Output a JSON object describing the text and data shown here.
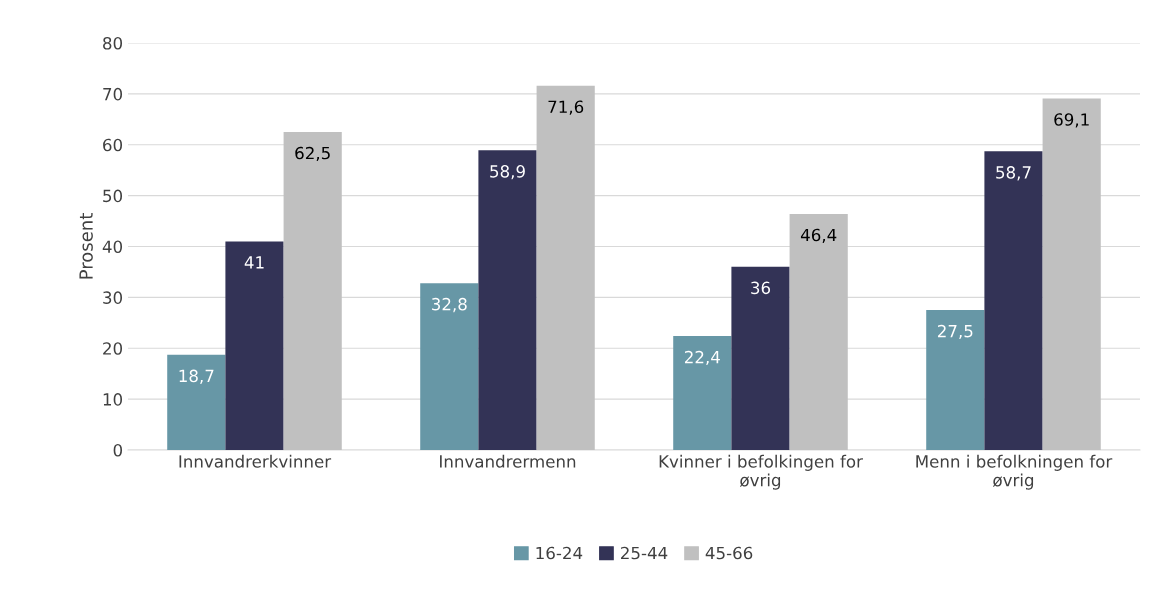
{
  "chart_data": {
    "type": "bar",
    "ylabel": "Prosent",
    "categories": [
      "Innvandrerkvinner",
      "Innvandrermenn",
      "Kvinner i befolkingen for\nøvrig",
      "Menn i befolkningen for\nøvrig"
    ],
    "series": [
      {
        "name": "16-24",
        "color": "#6797a6",
        "values": [
          18.7,
          32.8,
          22.4,
          27.5
        ],
        "value_labels": [
          "18,7",
          "32,8",
          "22,4",
          "27,5"
        ]
      },
      {
        "name": "25-44",
        "color": "#333356",
        "values": [
          41,
          58.9,
          36,
          58.7
        ],
        "value_labels": [
          "41",
          "58,9",
          "36",
          "58,7"
        ]
      },
      {
        "name": "45-66",
        "color": "#c0c0c0",
        "values": [
          62.5,
          71.6,
          46.4,
          69.1
        ],
        "value_labels": [
          "62,5",
          "71,6",
          "46,4",
          "69,1"
        ]
      }
    ],
    "ylim": [
      0,
      80
    ],
    "yticks": [
      0,
      10,
      20,
      30,
      40,
      50,
      60,
      70,
      80
    ],
    "grid": "y",
    "legend": "bottom"
  }
}
